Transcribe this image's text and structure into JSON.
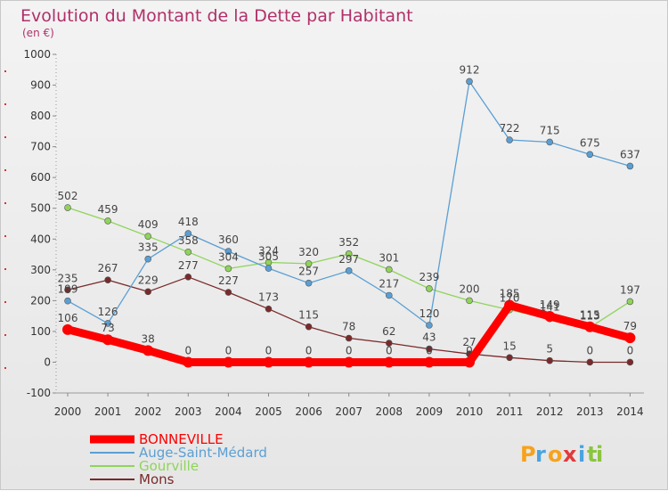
{
  "chart_data": {
    "type": "line",
    "title": "Evolution du Montant de la Dette par Habitant",
    "subtitle": "(en €)",
    "x": [
      "2000",
      "2001",
      "2002",
      "2003",
      "2004",
      "2005",
      "2006",
      "2007",
      "2008",
      "2009",
      "2010",
      "2011",
      "2012",
      "2013",
      "2014"
    ],
    "ylim": [
      -100,
      1000
    ],
    "yticks": [
      -100,
      0,
      100,
      200,
      300,
      400,
      500,
      600,
      700,
      800,
      900,
      1000
    ],
    "grid": false,
    "legend_position": "bottom-left",
    "series": [
      {
        "name": "BONNEVILLE",
        "color": "#ff0000",
        "values": [
          106,
          73,
          38,
          0,
          0,
          0,
          0,
          0,
          0,
          0,
          0,
          185,
          149,
          115,
          79
        ],
        "labels": [
          "106",
          "73",
          "38",
          "0",
          "0",
          "0",
          "0",
          "0",
          "0",
          "0",
          "0",
          "185",
          "149",
          "115",
          "79"
        ]
      },
      {
        "name": "Auge-Saint-Médard",
        "color": "#5a9fd4",
        "values": [
          199,
          126,
          335,
          418,
          360,
          305,
          257,
          297,
          217,
          120,
          912,
          722,
          715,
          675,
          637
        ],
        "labels": [
          "199",
          "126",
          "335",
          "418",
          "360",
          "305",
          "257",
          "297",
          "217",
          "120",
          "912",
          "722",
          "715",
          "675",
          "637"
        ]
      },
      {
        "name": "Gourville",
        "color": "#8fd45a",
        "values": [
          502,
          459,
          409,
          358,
          304,
          324,
          320,
          352,
          301,
          239,
          200,
          170,
          141,
          113,
          197
        ],
        "labels": [
          "502",
          "459",
          "409",
          "358",
          "304",
          "324",
          "320",
          "352",
          "301",
          "239",
          "200",
          "170",
          "141",
          "113",
          "197"
        ]
      },
      {
        "name": "Mons",
        "color": "#7a2a2a",
        "values": [
          235,
          267,
          229,
          277,
          227,
          173,
          115,
          78,
          62,
          43,
          27,
          15,
          5,
          0,
          0
        ],
        "labels": [
          "235",
          "267",
          "229",
          "277",
          "227",
          "173",
          "115",
          "78",
          "62",
          "43",
          "27",
          "15",
          "5",
          "0",
          "0"
        ]
      }
    ]
  },
  "brand": {
    "letters": [
      "P",
      "r",
      "o",
      "x",
      "i",
      "t",
      "i"
    ]
  }
}
